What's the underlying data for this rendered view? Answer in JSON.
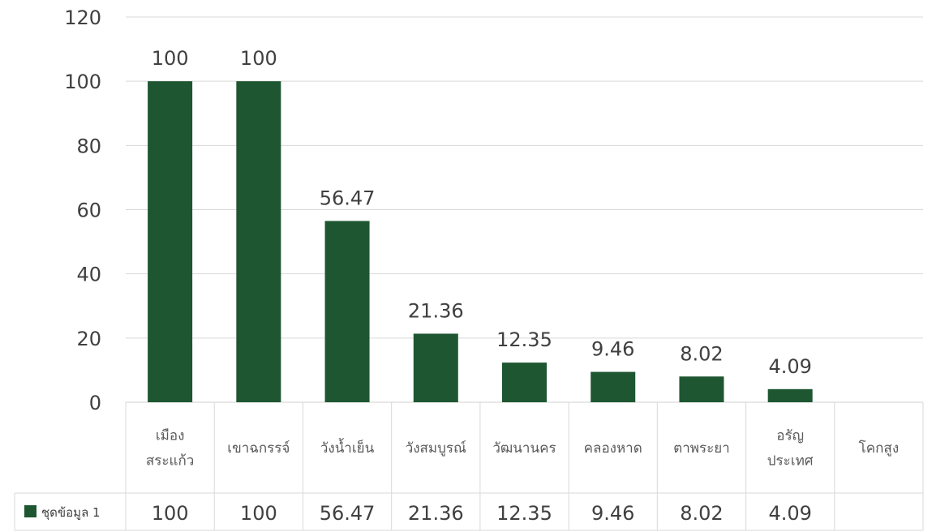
{
  "chart_data": {
    "type": "bar",
    "categories": [
      [
        "เมือง",
        "สระแก้ว"
      ],
      [
        "เขาฉกรรจ์"
      ],
      [
        "วังน้ำเย็น"
      ],
      [
        "วังสมบูรณ์"
      ],
      [
        "วัฒนานคร"
      ],
      [
        "คลองหาด"
      ],
      [
        "ตาพระยา"
      ],
      [
        "อรัญ",
        "ประเทศ"
      ],
      [
        "โคกสูง"
      ]
    ],
    "series": [
      {
        "name": "ชุดข้อมูล 1",
        "values": [
          100,
          100,
          56.47,
          21.36,
          12.35,
          9.46,
          8.02,
          4.09,
          null
        ],
        "labels": [
          "100",
          "100",
          "56.47",
          "21.36",
          "12.35",
          "9.46",
          "8.02",
          "4.09",
          ""
        ],
        "color": "#1e5631"
      }
    ],
    "title": "",
    "xlabel": "",
    "ylabel": "",
    "ylim": [
      0,
      120
    ],
    "yticks": [
      "0",
      "20",
      "40",
      "60",
      "80",
      "100",
      "120"
    ],
    "grid": true,
    "legend": "data-table",
    "data_table": true
  }
}
